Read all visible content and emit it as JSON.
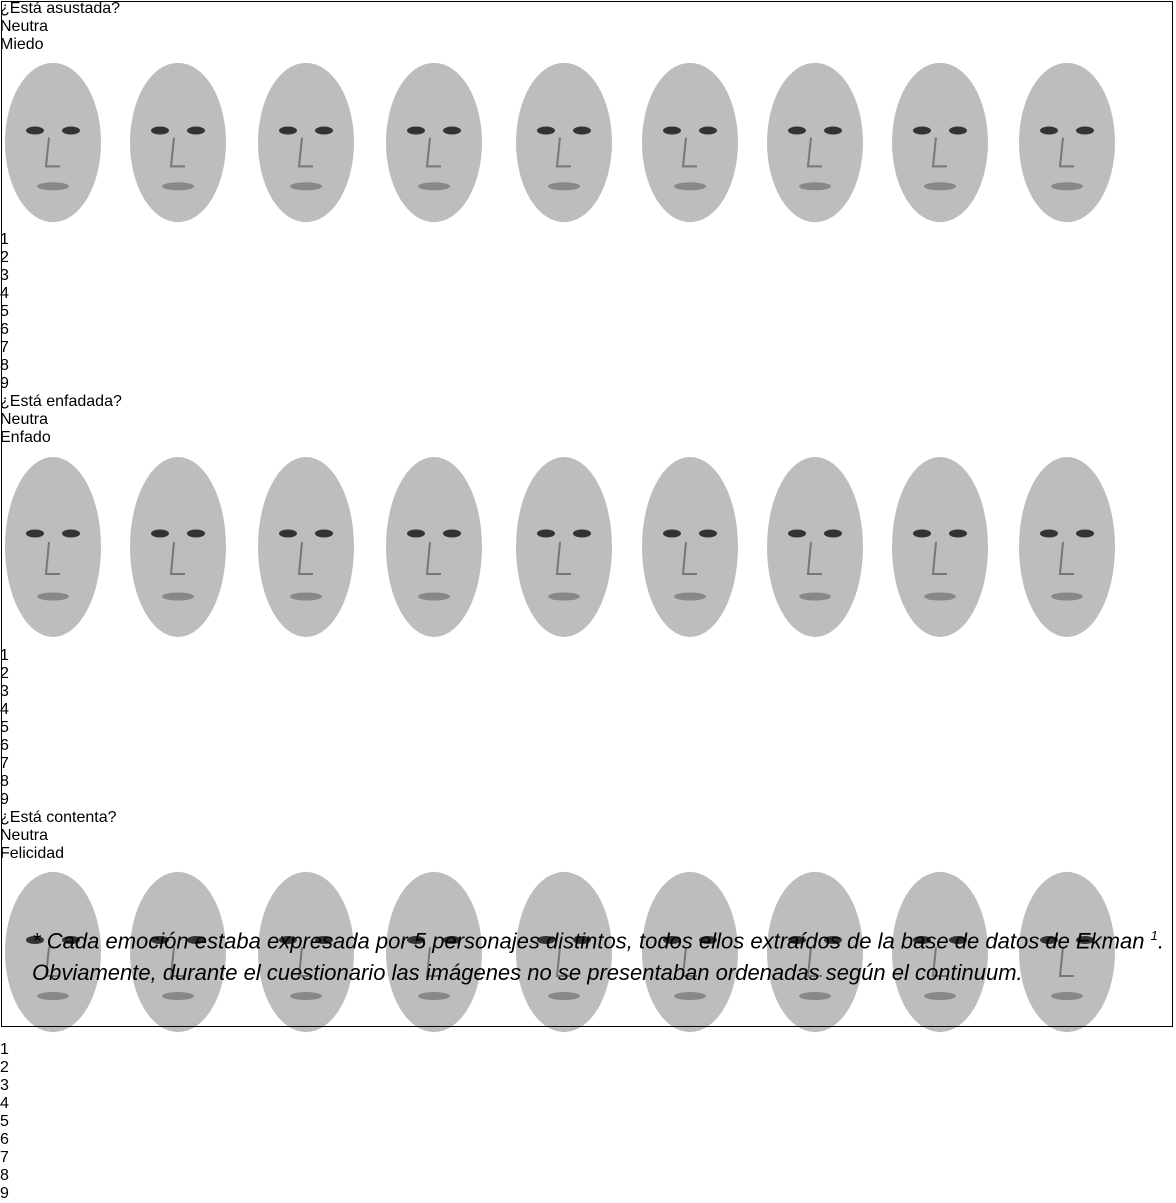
{
  "sections": [
    {
      "title": "¿Está asustada?",
      "left_label": "Neutra",
      "right_label": "Miedo",
      "scale": [
        1,
        2,
        3,
        4,
        5,
        6,
        7,
        8,
        9
      ]
    },
    {
      "title": "¿Está enfadada?",
      "left_label": "Neutra",
      "right_label": "Enfado",
      "scale": [
        1,
        2,
        3,
        4,
        5,
        6,
        7,
        8,
        9
      ]
    },
    {
      "title": "¿Está contenta?",
      "left_label": "Neutra",
      "right_label": "Felicidad",
      "scale": [
        1,
        2,
        3,
        4,
        5,
        6,
        7,
        8,
        9
      ]
    }
  ],
  "footnote": {
    "text": "* Cada emoción estaba expresada por 5 personajes distintos, todos ellos extraídos de la base de datos de Ekman ",
    "ref": "1",
    "text_end": ". Obviamente, durante el cuestionario las imágenes no se presentaban ordenadas según el  continuum."
  }
}
